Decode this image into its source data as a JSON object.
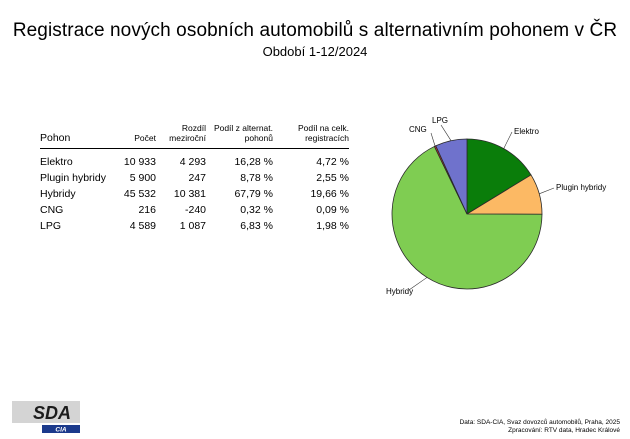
{
  "title": "Registrace nových osobních automobilů s alternativním pohonem v ČR",
  "subtitle": "Období 1-12/2024",
  "table": {
    "headers": [
      "Pohon",
      "Počet",
      "Rozdíl meziroční",
      "Podíl z alternat. pohonů",
      "Podíl na celk. registracích"
    ],
    "rows": [
      [
        "Elektro",
        "10 933",
        "4 293",
        "16,28 %",
        "4,72 %"
      ],
      [
        "Plugin hybridy",
        "5 900",
        "247",
        "8,78 %",
        "2,55 %"
      ],
      [
        "Hybridy",
        "45 532",
        "10 381",
        "67,79 %",
        "19,66 %"
      ],
      [
        "CNG",
        "216",
        "-240",
        "0,32 %",
        "0,09 %"
      ],
      [
        "LPG",
        "4 589",
        "1 087",
        "6,83 %",
        "1,98 %"
      ]
    ]
  },
  "chart_data": {
    "type": "pie",
    "categories": [
      "Elektro",
      "Plugin hybridy",
      "Hybridy",
      "CNG",
      "LPG"
    ],
    "values": [
      10933,
      5900,
      45532,
      216,
      4589
    ],
    "colors": [
      "#0a7d0a",
      "#fcb964",
      "#7fcd52",
      "#cc3333",
      "#6f72cc"
    ],
    "title": "",
    "legend": "none"
  },
  "logo": {
    "text": "SDA",
    "subtext": "CIA"
  },
  "source": {
    "line1": "Data: SDA-CIA, Svaz dovozců automobilů, Praha, 2025",
    "line2": "Zpracování: RTV data, Hradec Králové"
  }
}
